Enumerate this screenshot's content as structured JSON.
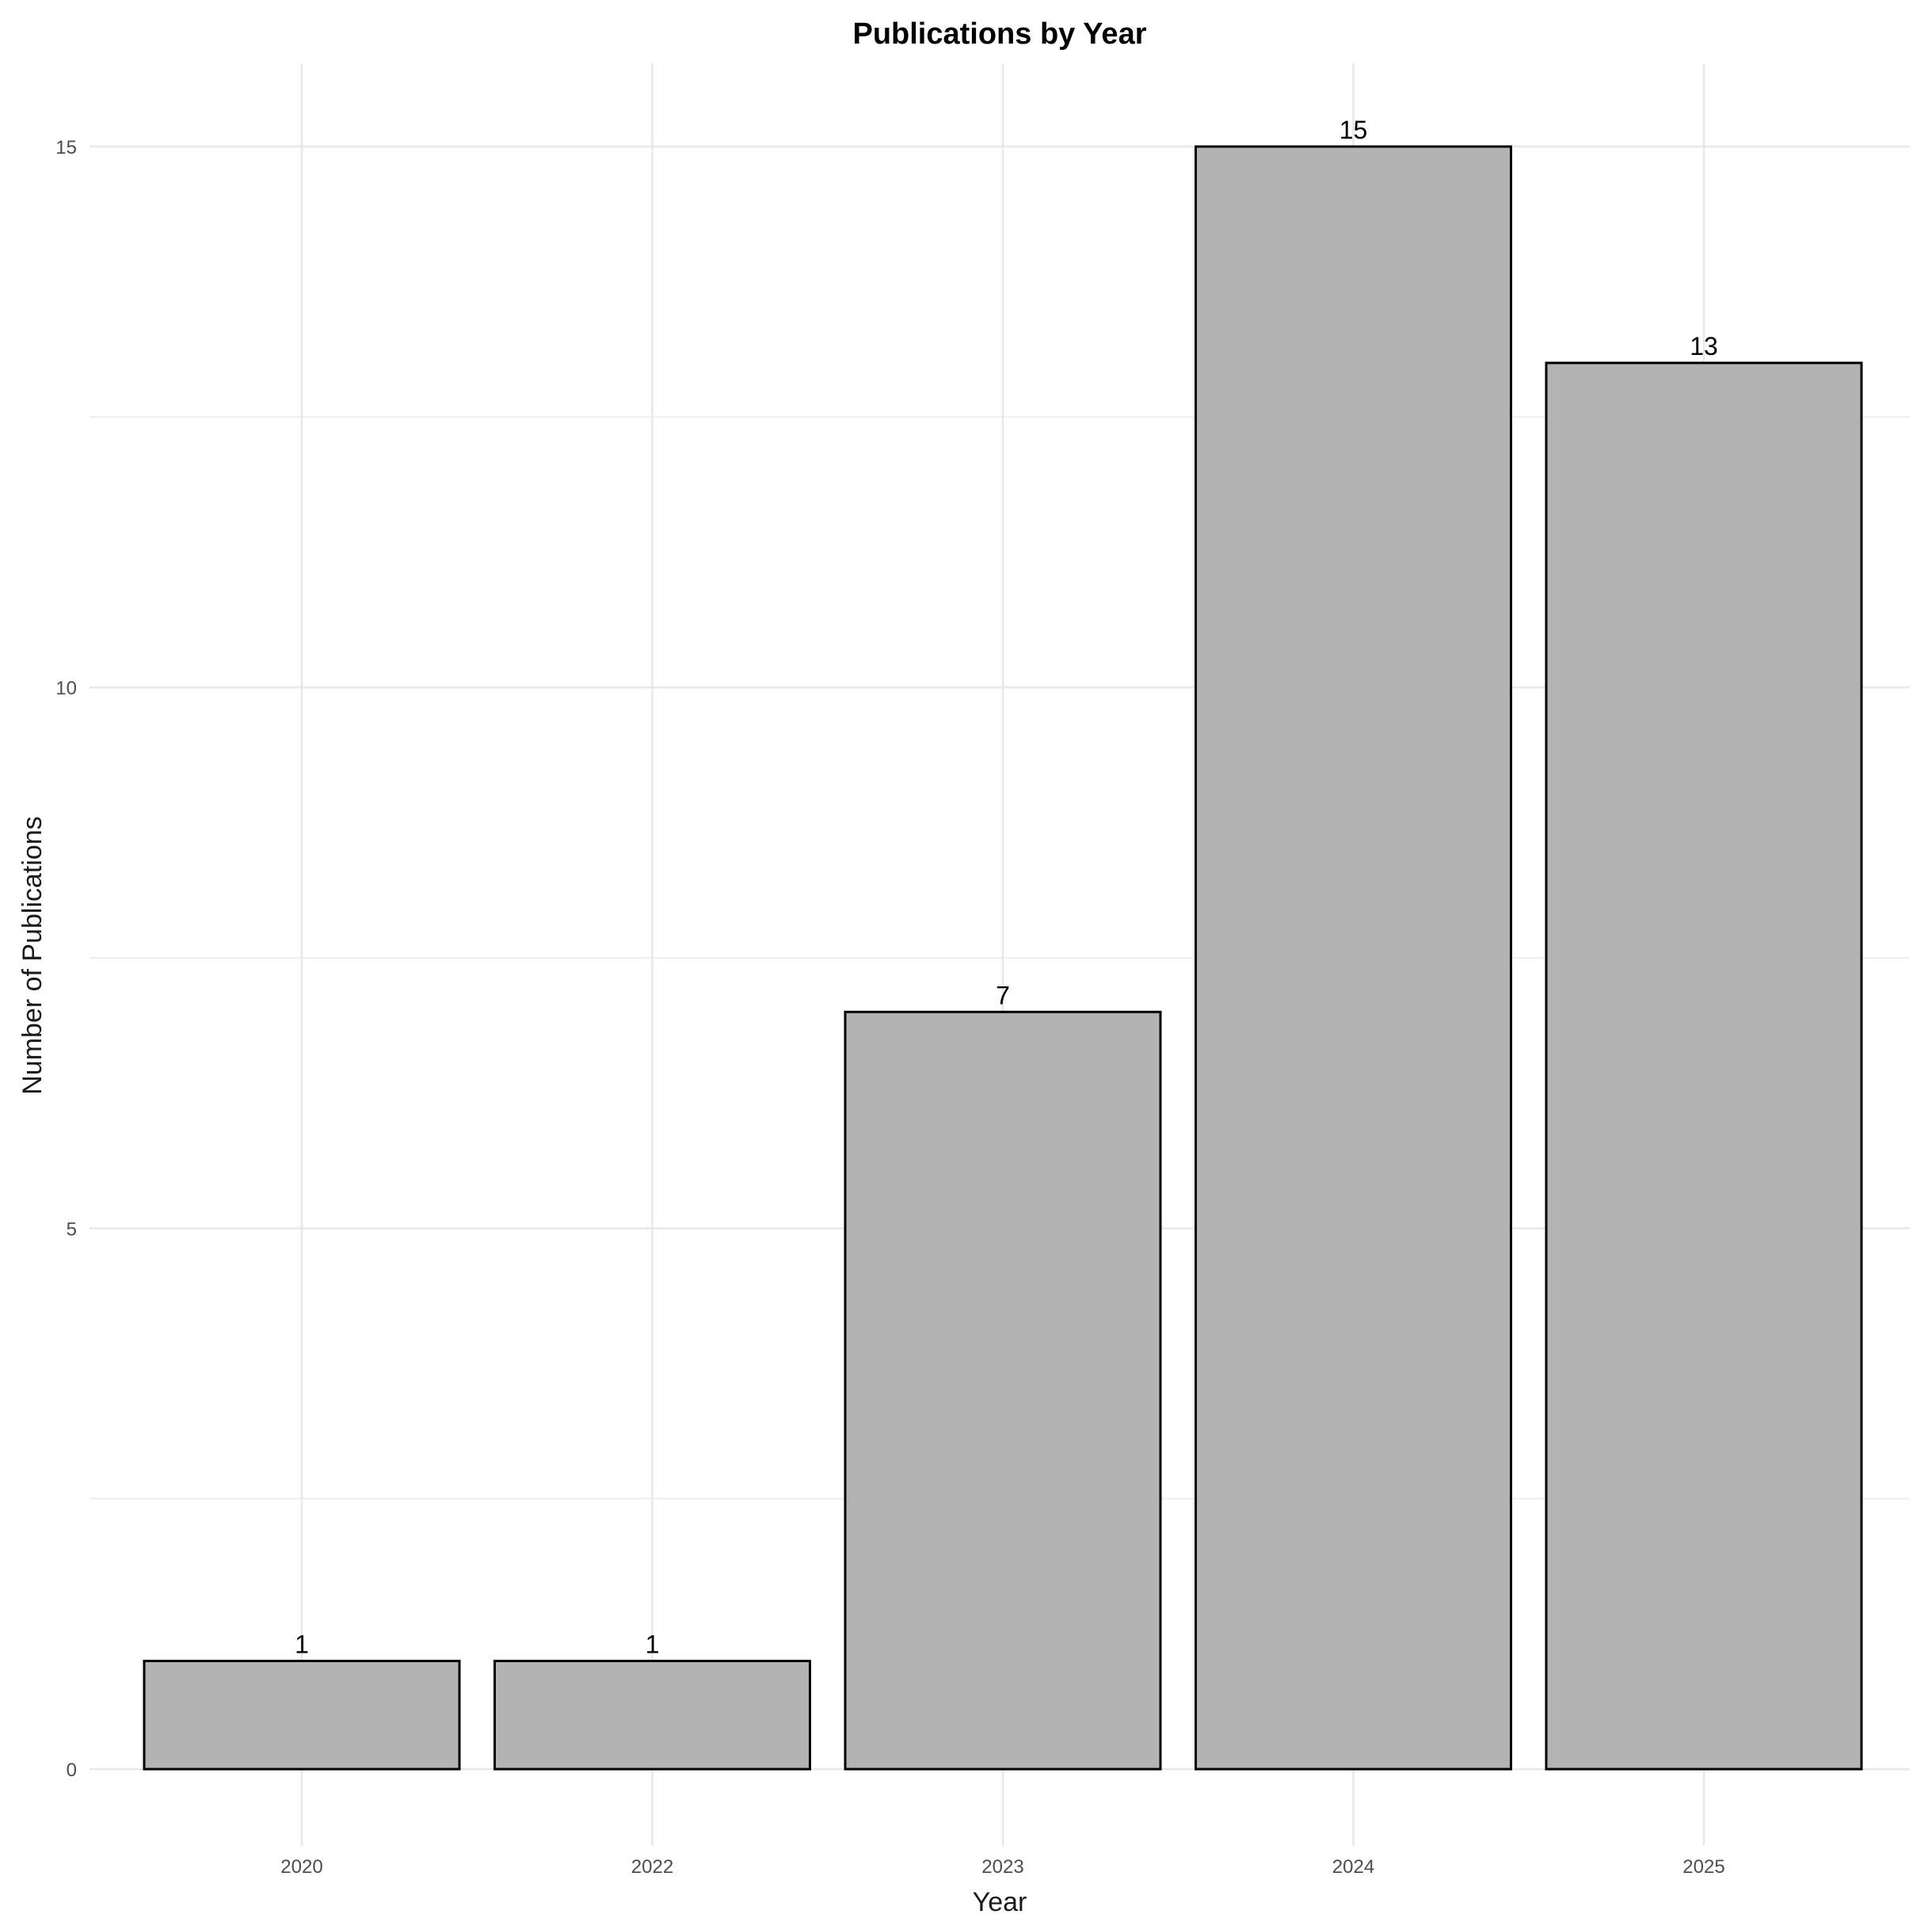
{
  "chart_data": {
    "type": "bar",
    "title": "Publications by Year",
    "xlabel": "Year",
    "ylabel": "Number of Publications",
    "categories": [
      "2020",
      "2022",
      "2023",
      "2024",
      "2025"
    ],
    "values": [
      1,
      1,
      7,
      15,
      13
    ],
    "data_labels": [
      "1",
      "1",
      "7",
      "15",
      "13"
    ],
    "ylim": [
      0,
      15.75
    ],
    "yticks": [
      0,
      5,
      10,
      15
    ],
    "ytick_labels": [
      "0",
      "5",
      "10",
      "15"
    ],
    "grid": true,
    "legend": "none",
    "colors": {
      "bar_fill": "#b3b3b3",
      "bar_outline": "#000000",
      "grid": "#ebebeb",
      "background": "#ffffff"
    }
  }
}
